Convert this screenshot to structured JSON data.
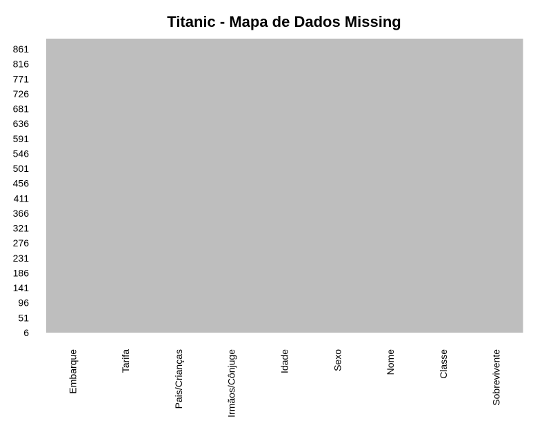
{
  "chart_data": {
    "type": "heatmap",
    "title": "Titanic - Mapa de Dados Missing",
    "xlabel": "",
    "ylabel": "",
    "x_categories": [
      "Embarque",
      "Tarifa",
      "Pais/Crianças",
      "Irmãos/Cônjuge",
      "Idade",
      "Sexo",
      "Nome",
      "Classe",
      "Sobrevivente"
    ],
    "y_tick_labels": [
      "861",
      "816",
      "771",
      "726",
      "681",
      "636",
      "591",
      "546",
      "501",
      "456",
      "411",
      "366",
      "321",
      "276",
      "231",
      "186",
      "141",
      "96",
      "51",
      "6"
    ],
    "row_range": [
      1,
      891
    ],
    "missing_counts": [
      0,
      0,
      0,
      0,
      0,
      0,
      0,
      0,
      0
    ],
    "present_color": "#bebebe",
    "missing_color": "#ffffff",
    "legend": "none",
    "grid": false
  }
}
